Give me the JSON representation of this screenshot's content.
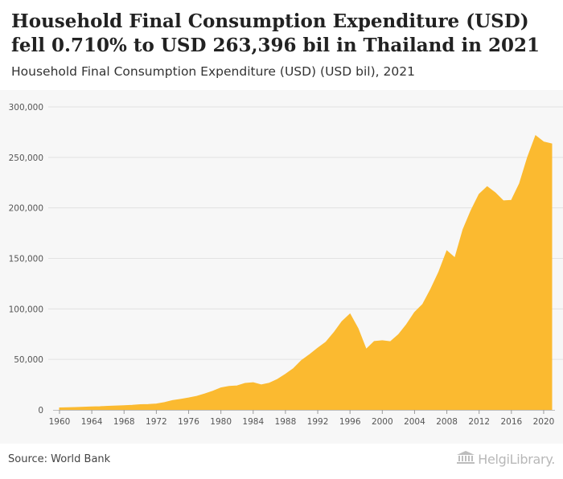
{
  "header": {
    "title": "Household Final Consumption Expenditure (USD) fell 0.710% to USD 263,396 bil in Thailand in 2021",
    "subtitle": "Household Final Consumption Expenditure (USD) (USD bil), 2021"
  },
  "footer": {
    "source": "Source: World Bank",
    "brand": "HelgiLibrary."
  },
  "colors": {
    "fill": "#FBBA30",
    "background": "#F7F7F7",
    "grid": "#E2E2E2"
  },
  "chart_data": {
    "type": "area",
    "title": "Household Final Consumption Expenditure (USD) fell 0.710% to USD 263,396 bil in Thailand in 2021",
    "subtitle": "Household Final Consumption Expenditure (USD) (USD bil), 2021",
    "xlabel": "",
    "ylabel": "",
    "ylim": [
      0,
      300000
    ],
    "yticks": [
      0,
      50000,
      100000,
      150000,
      200000,
      250000,
      300000
    ],
    "ytick_labels": [
      "0",
      "50,000",
      "100,000",
      "150,000",
      "200,000",
      "250,000",
      "300,000"
    ],
    "xticks": [
      1960,
      1964,
      1968,
      1972,
      1976,
      1980,
      1984,
      1988,
      1992,
      1996,
      2000,
      2004,
      2008,
      2012,
      2016,
      2020
    ],
    "grid": true,
    "x": [
      1960,
      1961,
      1962,
      1963,
      1964,
      1965,
      1966,
      1967,
      1968,
      1969,
      1970,
      1971,
      1972,
      1973,
      1974,
      1975,
      1976,
      1977,
      1978,
      1979,
      1980,
      1981,
      1982,
      1983,
      1984,
      1985,
      1986,
      1987,
      1988,
      1989,
      1990,
      1991,
      1992,
      1993,
      1994,
      1995,
      1996,
      1997,
      1998,
      1999,
      2000,
      2001,
      2002,
      2003,
      2004,
      2005,
      2006,
      2007,
      2008,
      2009,
      2010,
      2011,
      2012,
      2013,
      2014,
      2015,
      2016,
      2017,
      2018,
      2019,
      2020,
      2021
    ],
    "values": [
      2000,
      2200,
      2400,
      2700,
      3000,
      3200,
      3600,
      3900,
      4200,
      4600,
      5200,
      5400,
      5900,
      7300,
      9300,
      10500,
      11800,
      13400,
      15800,
      18500,
      21800,
      23300,
      23800,
      26300,
      27000,
      24800,
      26500,
      30200,
      35300,
      41000,
      49000,
      54800,
      61200,
      67000,
      76500,
      87500,
      95000,
      80500,
      60000,
      67800,
      68500,
      67500,
      74500,
      84500,
      96500,
      104500,
      119500,
      136500,
      157500,
      150500,
      178500,
      197500,
      213500,
      221000,
      215000,
      207000,
      207500,
      224000,
      250000,
      271500,
      265300,
      263396
    ],
    "series": [
      {
        "values": [
          2000,
          2200,
          2400,
          2700,
          3000,
          3200,
          3600,
          3900,
          4200,
          4600,
          5200,
          5400,
          5900,
          7300,
          9300,
          10500,
          11800,
          13400,
          15800,
          18500,
          21800,
          23300,
          23800,
          26300,
          27000,
          24800,
          26500,
          30200,
          35300,
          41000,
          49000,
          54800,
          61200,
          67000,
          76500,
          87500,
          95000,
          80500,
          60000,
          67800,
          68500,
          67500,
          74500,
          84500,
          96500,
          104500,
          119500,
          136500,
          157500,
          150500,
          178500,
          197500,
          213500,
          221000,
          215000,
          207000,
          207500,
          224000,
          250000,
          271500,
          265300,
          263396
        ]
      }
    ]
  }
}
